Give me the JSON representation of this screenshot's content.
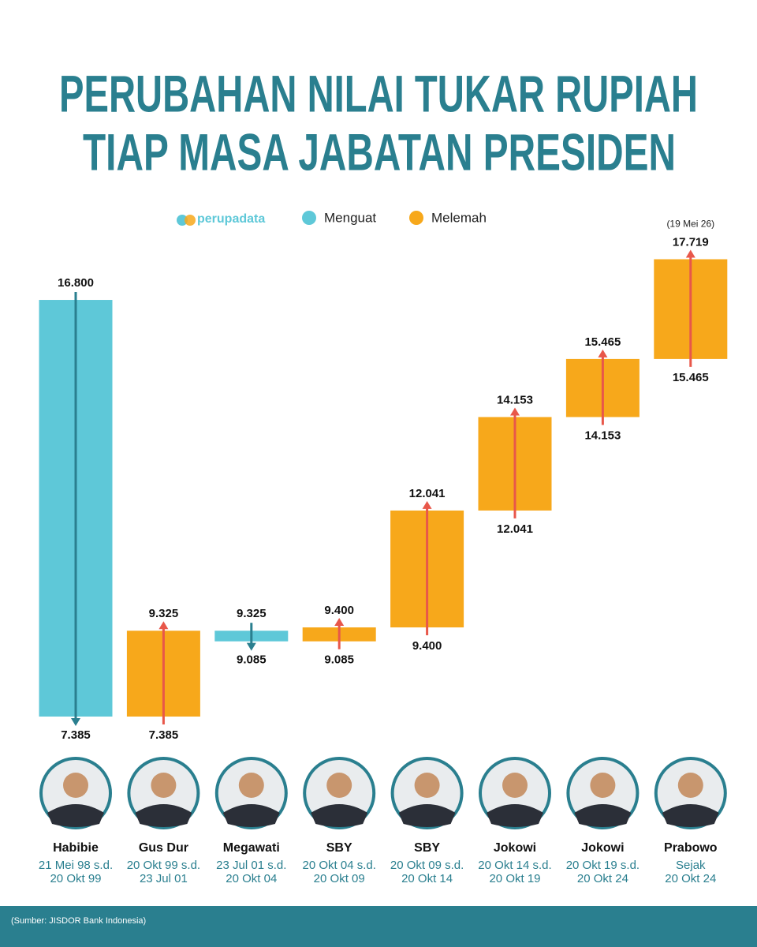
{
  "chart_data": {
    "type": "floating-bar",
    "title": [
      "PERUBAHAN NILAI TUKAR RUPIAH",
      "TIAP MASA JABATAN PRESIDEN"
    ],
    "brand": "perupadata",
    "legend": [
      {
        "name": "Menguat",
        "color": "#5ec8d8",
        "arrow_color": "#2a7f8f"
      },
      {
        "name": "Melemah",
        "color": "#f7a81b",
        "arrow_color": "#e8574a"
      }
    ],
    "categories": [
      "Habibie",
      "Gus Dur",
      "Megawati",
      "SBY",
      "SBY",
      "Jokowi",
      "Jokowi",
      "Prabowo"
    ],
    "periods": [
      [
        "21 Mei 98 s.d.",
        "20 Okt 99"
      ],
      [
        "20 Okt 99 s.d.",
        "23 Jul 01"
      ],
      [
        "23 Jul 01 s.d.",
        "20 Okt 04"
      ],
      [
        "20 Okt 04 s.d.",
        "20 Okt 09"
      ],
      [
        "20 Okt 09 s.d.",
        "20 Okt 14"
      ],
      [
        "20 Okt 14 s.d.",
        "20 Okt 19"
      ],
      [
        "20 Okt 19 s.d.",
        "20 Okt 24"
      ],
      [
        "Sejak",
        "20 Okt 24"
      ]
    ],
    "start": [
      16800,
      7385,
      9325,
      9085,
      9400,
      12041,
      14153,
      15465
    ],
    "start_labels": [
      "16.800",
      "7.385",
      "9.325",
      "9.085",
      "9.400",
      "12.041",
      "14.153",
      "15.465"
    ],
    "end": [
      7385,
      9325,
      9085,
      9400,
      12041,
      14153,
      15465,
      17719
    ],
    "end_labels": [
      "7.385",
      "9.325",
      "9.085",
      "9.400",
      "12.041",
      "14.153",
      "15.465",
      "17.719"
    ],
    "annotation": "(19 Mei 26)",
    "source": "(Sumber: JISDOR Bank Indonesia)"
  }
}
